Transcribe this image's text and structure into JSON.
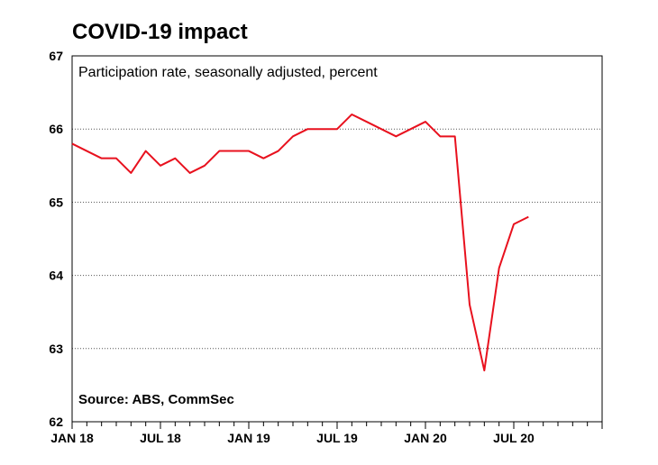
{
  "chart_data": {
    "type": "line",
    "title": "COVID-19 impact",
    "subtitle": "Participation rate, seasonally adjusted, percent",
    "source": "Source: ABS, CommSec",
    "x": [
      "2018-01",
      "2018-02",
      "2018-03",
      "2018-04",
      "2018-05",
      "2018-06",
      "2018-07",
      "2018-08",
      "2018-09",
      "2018-10",
      "2018-11",
      "2018-12",
      "2019-01",
      "2019-02",
      "2019-03",
      "2019-04",
      "2019-05",
      "2019-06",
      "2019-07",
      "2019-08",
      "2019-09",
      "2019-10",
      "2019-11",
      "2019-12",
      "2020-01",
      "2020-02",
      "2020-03",
      "2020-04",
      "2020-05",
      "2020-06",
      "2020-07",
      "2020-08"
    ],
    "series": [
      {
        "values": [
          65.8,
          65.7,
          65.6,
          65.6,
          65.4,
          65.7,
          65.5,
          65.6,
          65.4,
          65.5,
          65.7,
          65.7,
          65.7,
          65.6,
          65.7,
          65.9,
          66.0,
          66.0,
          66.0,
          66.2,
          66.1,
          66.0,
          65.9,
          66.0,
          66.1,
          65.9,
          65.9,
          63.6,
          62.7,
          64.1,
          64.7,
          64.8
        ],
        "color": "#e8111e"
      }
    ],
    "x_ticks": [
      "JAN 18",
      "JUL 18",
      "JAN 19",
      "JUL 19",
      "JAN 20",
      "JUL 20"
    ],
    "x_tick_dates": [
      "2018-01",
      "2018-07",
      "2019-01",
      "2019-07",
      "2020-01",
      "2020-07"
    ],
    "x_range": [
      "2018-01",
      "2021-01"
    ],
    "y_ticks": [
      62,
      63,
      64,
      65,
      66,
      67
    ],
    "ylim": [
      62,
      67
    ],
    "gridlines": [
      63,
      64,
      65,
      66
    ],
    "grid": true
  }
}
